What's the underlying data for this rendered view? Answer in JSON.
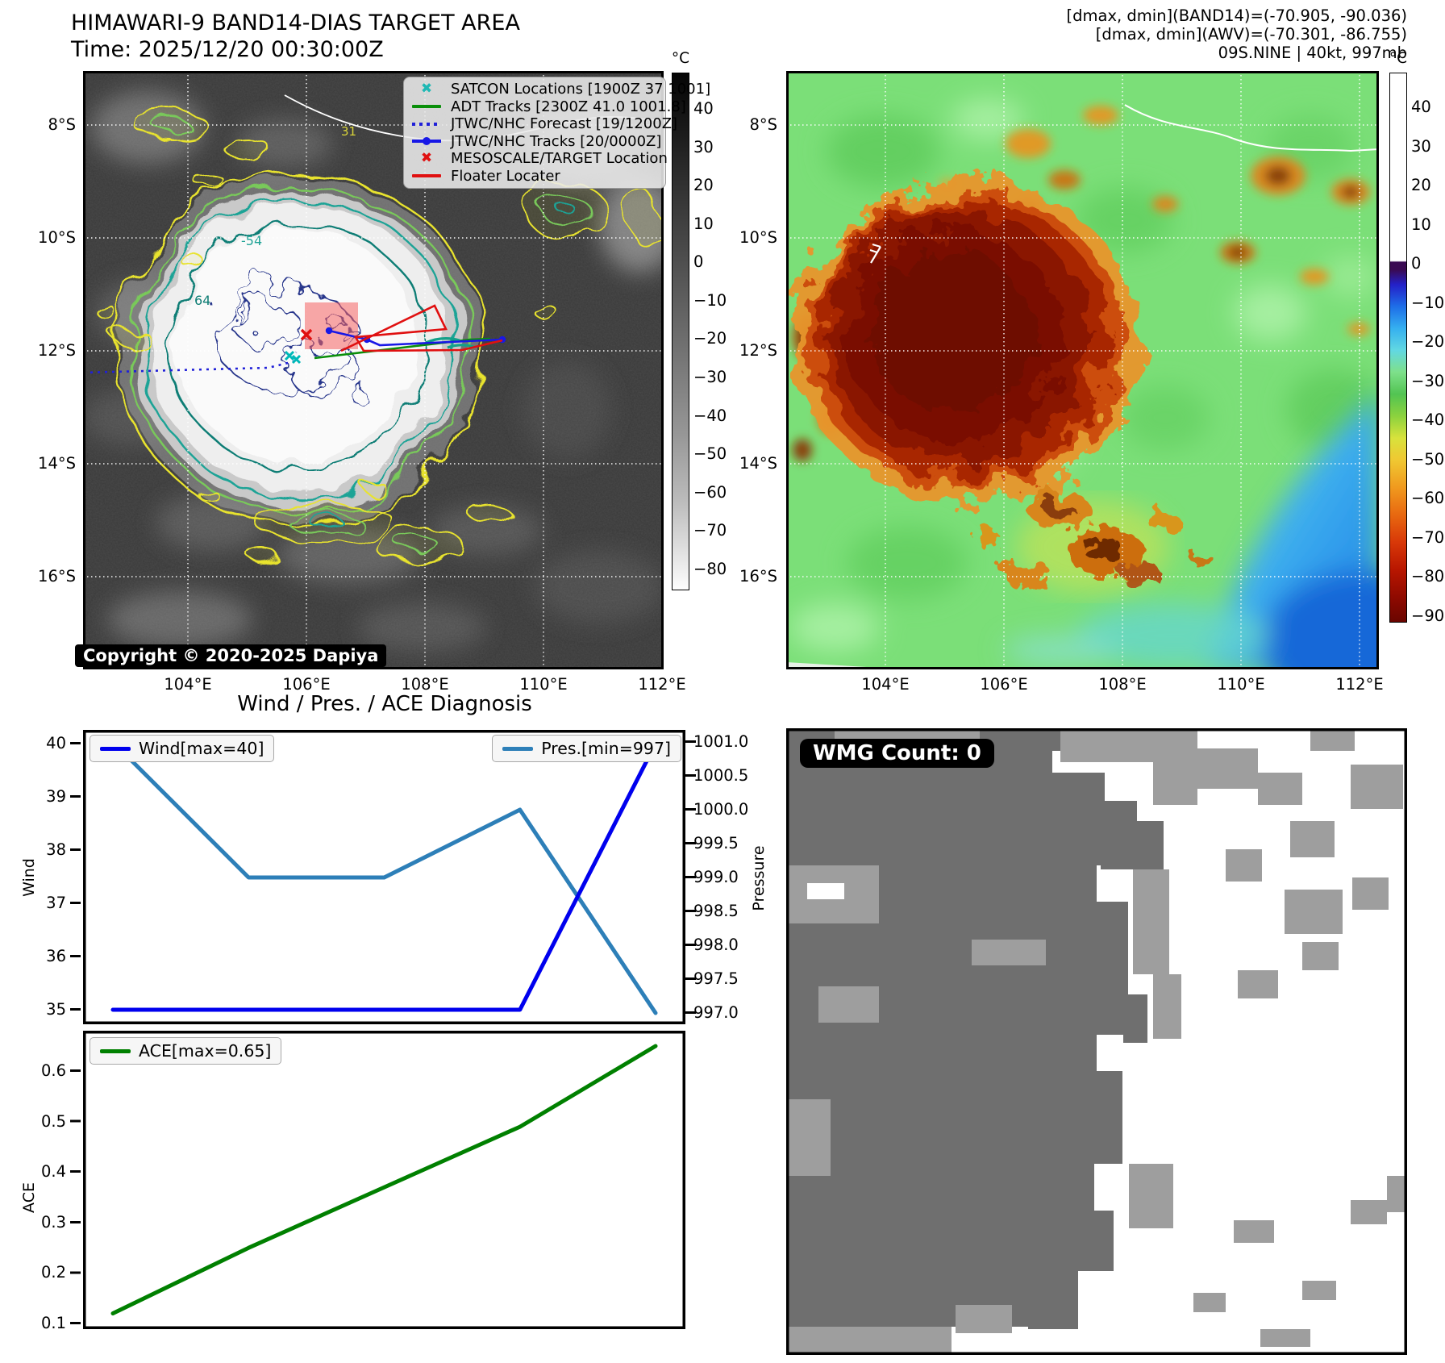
{
  "header": {
    "title": "HIMAWARI-9 BAND14-DIAS TARGET AREA",
    "time": "Time: 2025/12/20 00:30:00Z",
    "dminmax_band14": "[dmax, dmin](BAND14)=(-70.905, -90.036)",
    "dminmax_awv": "[dmax, dmin](AWV)=(-70.301, -86.755)",
    "storm_id": "09S.NINE | 40kt, 997mb"
  },
  "left_map": {
    "legend": [
      {
        "label": "SATCON Locations [1900Z 37 1001]",
        "marker": "x",
        "color": "#1fb8b4"
      },
      {
        "label": "ADT Tracks [2300Z 41.0 1001.8]",
        "marker": "line",
        "color": "#0a8f0a"
      },
      {
        "label": "JTWC/NHC Forecast [19/1200Z]",
        "marker": "dotted-line",
        "color": "#2020d8"
      },
      {
        "label": "JTWC/NHC Tracks [20/0000Z]",
        "marker": "line-dot",
        "color": "#1818e6"
      },
      {
        "label": "MESOSCALE/TARGET Location",
        "marker": "x",
        "color": "#e01010"
      },
      {
        "label": "Floater Locater",
        "marker": "line",
        "color": "#e01010"
      }
    ],
    "copyright": "Copyright © 2020-2025 Dapiya",
    "contour_labels": {
      "a": "-54",
      "b": "64",
      "c": "31"
    },
    "x_ticks": [
      "104°E",
      "106°E",
      "108°E",
      "110°E",
      "112°E"
    ],
    "y_ticks": [
      "8°S",
      "10°S",
      "12°S",
      "14°S",
      "16°S"
    ],
    "colorbar": {
      "unit": "°C",
      "ticks": [
        "40",
        "30",
        "20",
        "10",
        "0",
        "−10",
        "−20",
        "−30",
        "−40",
        "−50",
        "−60",
        "−70",
        "−80"
      ]
    }
  },
  "right_map": {
    "x_ticks": [
      "104°E",
      "106°E",
      "108°E",
      "110°E",
      "112°E"
    ],
    "y_ticks": [
      "8°S",
      "10°S",
      "12°S",
      "14°S",
      "16°S"
    ],
    "colorbar": {
      "unit": "°C",
      "ticks": [
        "40",
        "30",
        "20",
        "10",
        "0",
        "−10",
        "−20",
        "−30",
        "−40",
        "−50",
        "−60",
        "−70",
        "−80",
        "−90"
      ]
    }
  },
  "diagnosis": {
    "title": "Wind / Pres. / ACE Diagnosis",
    "wind_legend": "Wind[max=40]",
    "pres_legend": "Pres.[min=997]",
    "ace_legend": "ACE[max=0.65]",
    "wind_axis_label": "Wind",
    "pres_axis_label": "Pressure",
    "ace_axis_label": "ACE",
    "wind_ticks": [
      "40",
      "39",
      "38",
      "37",
      "36",
      "35"
    ],
    "pres_ticks": [
      "1001.0",
      "1000.5",
      "1000.0",
      "999.5",
      "999.0",
      "998.5",
      "998.0",
      "997.5",
      "997.0"
    ],
    "ace_ticks": [
      "0.6",
      "0.5",
      "0.4",
      "0.3",
      "0.2",
      "0.1"
    ]
  },
  "wmg": {
    "label": "WMG Count: 0"
  },
  "chart_data": [
    {
      "type": "line",
      "title": "Wind / Pres. / ACE Diagnosis",
      "x": [
        0,
        1,
        2,
        3,
        4
      ],
      "series": [
        {
          "name": "Wind[max=40]",
          "axis": "left",
          "color": "#0000ee",
          "values": [
            35,
            35,
            35,
            35,
            40
          ]
        },
        {
          "name": "Pres.[min=997]",
          "axis": "right",
          "color": "#2d7fb8",
          "values": [
            1001.0,
            999.0,
            999.0,
            1000.0,
            997.0
          ]
        }
      ],
      "ylabel_left": "Wind",
      "ylim_left": [
        35,
        40
      ],
      "ylabel_right": "Pressure",
      "ylim_right": [
        997.0,
        1001.0
      ],
      "grid": false,
      "legend_position": "upper-left / upper-right"
    },
    {
      "type": "line",
      "x": [
        0,
        1,
        2,
        3,
        4
      ],
      "series": [
        {
          "name": "ACE[max=0.65]",
          "color": "#008000",
          "values": [
            0.12,
            0.25,
            0.37,
            0.49,
            0.65
          ]
        }
      ],
      "ylabel": "ACE",
      "ylim": [
        0.1,
        0.65
      ],
      "grid": false,
      "legend_position": "upper-left"
    }
  ],
  "colors": {
    "wind_line": "#0000ee",
    "pressure_line": "#2d7fb8",
    "ace_line": "#008000",
    "adt_track": "#0a8f0a",
    "jtwc_track": "#1818e6",
    "floater": "#e01010",
    "satcon_marker": "#1fb8b4"
  }
}
